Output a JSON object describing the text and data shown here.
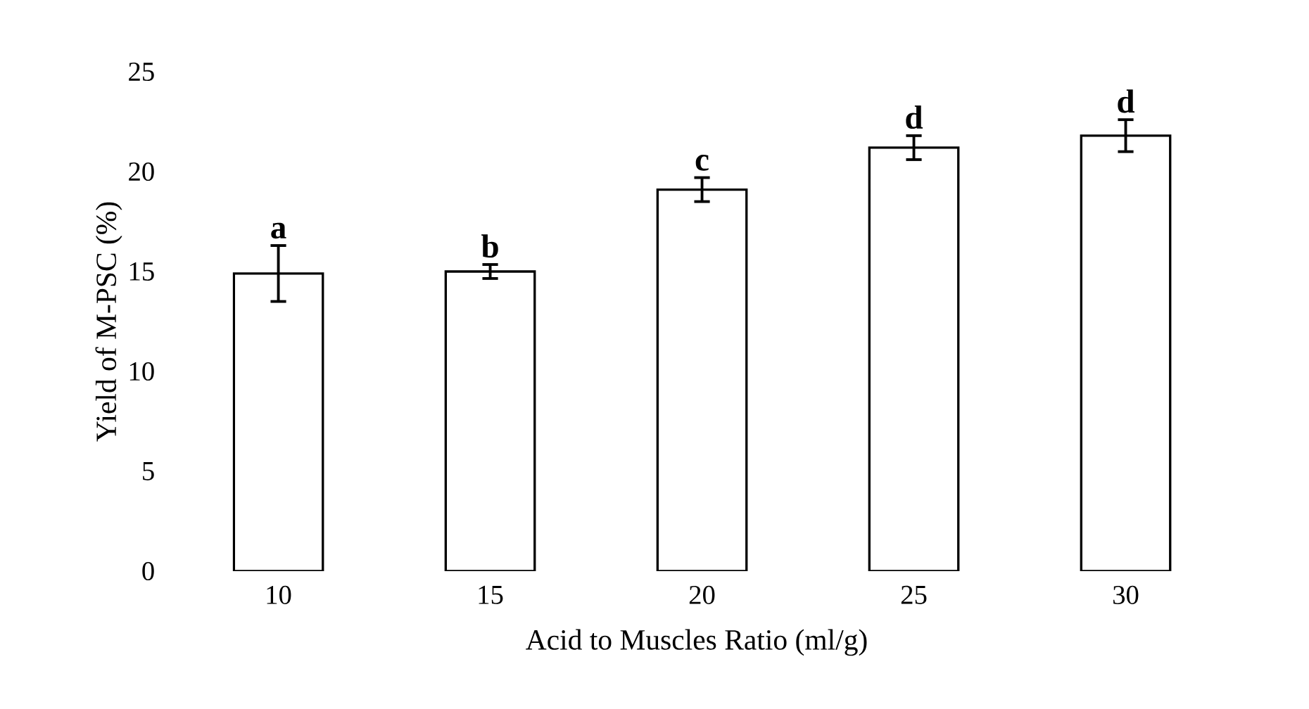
{
  "chart_data": {
    "type": "bar",
    "xlabel": "Acid to Muscles Ratio (ml/g)",
    "ylabel": "Yield of M-PSC (%)",
    "categories": [
      "10",
      "15",
      "20",
      "25",
      "30"
    ],
    "values": [
      14.9,
      15.0,
      19.1,
      21.2,
      21.8
    ],
    "errors": [
      1.4,
      0.35,
      0.6,
      0.6,
      0.8
    ],
    "color": "#ffffff",
    "ylim": [
      0,
      25
    ],
    "yticks": [
      0,
      5,
      10,
      15,
      20,
      25
    ],
    "annotations": [
      {
        "text": "a",
        "x": "10",
        "y": 16.3
      },
      {
        "text": "b",
        "x": "15",
        "y": 15.35
      },
      {
        "text": "c",
        "x": "20",
        "y": 19.7
      },
      {
        "text": "d",
        "x": "25",
        "y": 21.8
      },
      {
        "text": "d",
        "x": "30",
        "y": 22.6
      }
    ]
  }
}
